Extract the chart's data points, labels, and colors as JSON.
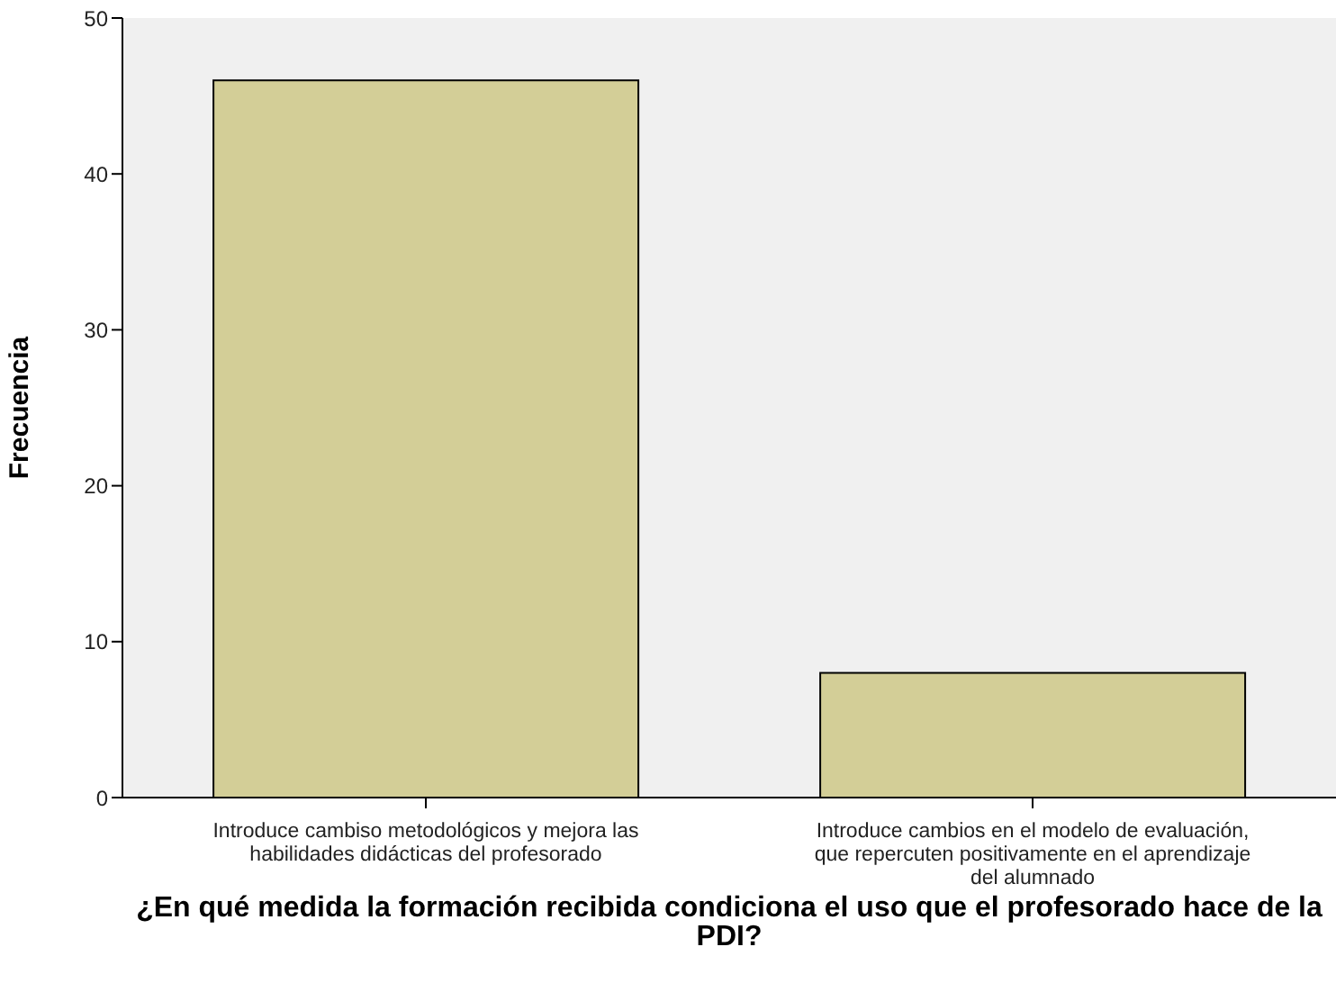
{
  "chart_data": {
    "type": "bar",
    "xlabel": "¿En qué medida la formación recibida condiciona el uso que el profesorado hace de la PDI?",
    "ylabel": "Frecuencia",
    "categories": [
      "Introduce cambiso metodológicos y mejora las habilidades didácticas del profesorado",
      "Introduce cambios en el modelo de evaluación, que repercuten positivamente en el aprendizaje del alumnado"
    ],
    "values": [
      46,
      8
    ],
    "color": "#d3ce97",
    "ylim": [
      0,
      50
    ],
    "yticks": [
      0,
      10,
      20,
      30,
      40,
      50
    ]
  }
}
